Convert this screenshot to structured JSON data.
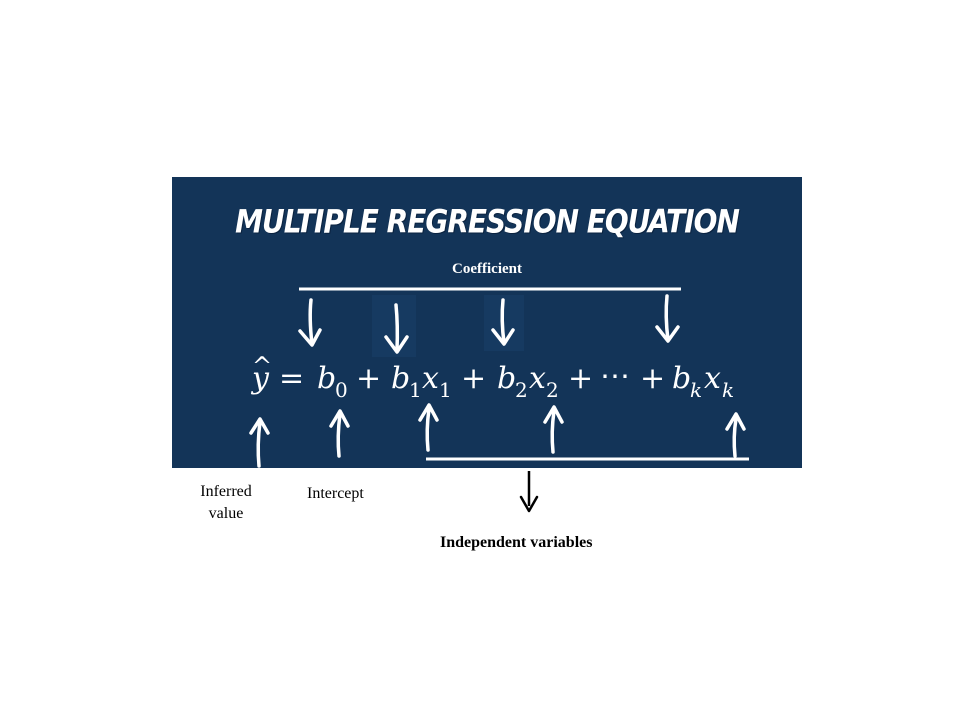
{
  "title": "MULTIPLE REGRESSION EQUATION",
  "coefficient_label": "Coefficient",
  "equation": {
    "y": "y",
    "hat": "^",
    "equals": "=",
    "plus": "+",
    "ellipsis": "⋯",
    "b": "b",
    "x": "x",
    "sub_0": "0",
    "sub_1": "1",
    "sub_2": "2",
    "sub_k": "k"
  },
  "labels": {
    "inferred_value_line1": "Inferred",
    "inferred_value_line2": "value",
    "intercept": "Intercept",
    "independent_variables": "Independent variables"
  },
  "colors": {
    "panel_background": "#133458",
    "chalk": "#ffffff",
    "text_below": "#000000"
  }
}
